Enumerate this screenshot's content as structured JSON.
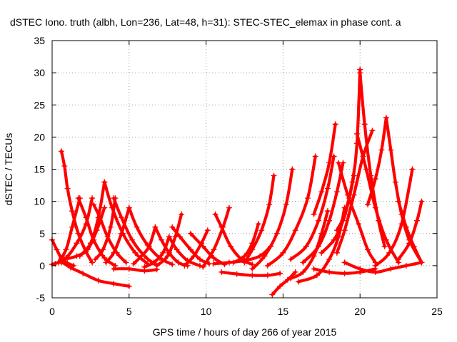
{
  "chart_data": {
    "type": "scatter",
    "title": "dSTEC Iono. truth (albh, Lon=236, Lat=48, h=31): STEC-STEC_elemax in phase cont. a",
    "xlabel": "GPS time / hours of day 266 of year 2015",
    "ylabel": "dSTEC  / TECUs",
    "xlim": [
      0,
      25
    ],
    "ylim": [
      -5,
      35
    ],
    "x_ticks": [
      "0",
      "5",
      "10",
      "15",
      "20",
      "25"
    ],
    "y_ticks": [
      "-5",
      "0",
      "5",
      "10",
      "15",
      "20",
      "25",
      "30",
      "35"
    ],
    "grid": true,
    "marker": "plus",
    "color": "#ff0000",
    "arcs": [
      {
        "x": [
          0.0,
          0.3,
          0.6,
          1.0,
          1.4
        ],
        "y": [
          4.0,
          2.5,
          1.2,
          0.4,
          0.0
        ]
      },
      {
        "x": [
          0.0,
          0.6,
          1.2,
          2.0,
          3.0,
          4.0,
          5.0
        ],
        "y": [
          0.2,
          0.5,
          -0.3,
          -1.2,
          -2.3,
          -2.8,
          -3.2
        ]
      },
      {
        "x": [
          0.2,
          0.9,
          1.6,
          2.2,
          2.6
        ],
        "y": [
          0.3,
          1.2,
          3.5,
          6.5,
          10.5
        ]
      },
      {
        "x": [
          0.6,
          0.8,
          1.0,
          1.3,
          1.7,
          2.2,
          2.6
        ],
        "y": [
          17.8,
          15.5,
          12.0,
          8.5,
          5.0,
          2.2,
          0.5
        ]
      },
      {
        "x": [
          0.4,
          0.9,
          1.3,
          1.8
        ],
        "y": [
          0.5,
          2.5,
          6.0,
          10.5
        ]
      },
      {
        "x": [
          1.7,
          2.2,
          2.7,
          3.4,
          4.1
        ],
        "y": [
          10.5,
          7.5,
          4.0,
          1.2,
          0.0
        ]
      },
      {
        "x": [
          0.8,
          1.6,
          2.3,
          2.9,
          3.4
        ],
        "y": [
          1.0,
          1.5,
          2.5,
          5.5,
          9.0
        ]
      },
      {
        "x": [
          2.7,
          3.1,
          3.6,
          4.2,
          4.8
        ],
        "y": [
          9.5,
          7.5,
          4.5,
          2.0,
          0.5
        ]
      },
      {
        "x": [
          1.8,
          2.5,
          3.0,
          3.4
        ],
        "y": [
          1.5,
          3.5,
          7.5,
          13.0
        ]
      },
      {
        "x": [
          3.4,
          3.9,
          4.6,
          5.4,
          6.2
        ],
        "y": [
          13.0,
          9.0,
          5.0,
          2.0,
          0.3
        ]
      },
      {
        "x": [
          2.8,
          3.3,
          3.8,
          4.1
        ],
        "y": [
          1.0,
          2.5,
          6.0,
          10.5
        ]
      },
      {
        "x": [
          4.0,
          4.5,
          5.2,
          6.0,
          6.8
        ],
        "y": [
          10.5,
          7.5,
          4.0,
          1.5,
          0.0
        ]
      },
      {
        "x": [
          3.5,
          4.0,
          4.5,
          5.0
        ],
        "y": [
          0.5,
          2.0,
          5.0,
          9.0
        ]
      },
      {
        "x": [
          5.0,
          5.5,
          6.2,
          7.0,
          7.8
        ],
        "y": [
          9.0,
          6.0,
          3.2,
          1.2,
          0.2
        ]
      },
      {
        "x": [
          4.0,
          5.0,
          6.0,
          6.8
        ],
        "y": [
          -0.5,
          -0.5,
          -0.8,
          -0.6
        ]
      },
      {
        "x": [
          5.3,
          5.8,
          6.3,
          6.7
        ],
        "y": [
          0.3,
          1.5,
          3.0,
          6.0
        ]
      },
      {
        "x": [
          6.7,
          7.1,
          7.6,
          8.2,
          8.8
        ],
        "y": [
          6.0,
          4.0,
          2.0,
          0.5,
          0.0
        ]
      },
      {
        "x": [
          6.0,
          6.6,
          7.2,
          7.6
        ],
        "y": [
          -0.2,
          0.5,
          2.0,
          4.5
        ]
      },
      {
        "x": [
          7.6,
          8.1,
          8.8,
          9.6
        ],
        "y": [
          4.5,
          2.5,
          0.8,
          0.0
        ]
      },
      {
        "x": [
          6.8,
          7.5,
          8.0,
          8.4
        ],
        "y": [
          0.0,
          1.5,
          4.5,
          8.0
        ]
      },
      {
        "x": [
          7.8,
          8.3,
          9.0,
          9.6,
          10.2
        ],
        "y": [
          6.0,
          4.5,
          2.5,
          1.0,
          0.3
        ]
      },
      {
        "x": [
          8.6,
          9.2,
          9.7,
          10.1
        ],
        "y": [
          0.0,
          1.5,
          3.5,
          5.5
        ]
      },
      {
        "x": [
          9.0,
          9.8,
          10.5,
          11.2
        ],
        "y": [
          5.0,
          3.0,
          1.2,
          0.2
        ]
      },
      {
        "x": [
          9.8,
          10.5,
          11.1,
          11.5
        ],
        "y": [
          -0.2,
          2.5,
          6.0,
          9.0
        ]
      },
      {
        "x": [
          10.6,
          11.0,
          11.6,
          12.3,
          13.0
        ],
        "y": [
          8.0,
          6.0,
          3.0,
          1.0,
          0.2
        ]
      },
      {
        "x": [
          10.5,
          11.5,
          12.5,
          13.5,
          14.2
        ],
        "y": [
          0.3,
          0.5,
          0.8,
          1.5,
          3.0
        ]
      },
      {
        "x": [
          11.0,
          12.0,
          13.0,
          14.0,
          14.8
        ],
        "y": [
          -1.0,
          -1.3,
          -1.5,
          -1.5,
          -1.2
        ]
      },
      {
        "x": [
          11.8,
          12.5,
          13.0,
          13.4
        ],
        "y": [
          0.5,
          1.5,
          3.5,
          6.5
        ]
      },
      {
        "x": [
          12.5,
          13.0,
          13.6,
          14.1,
          14.4
        ],
        "y": [
          0.5,
          2.5,
          5.5,
          9.5,
          14.0
        ]
      },
      {
        "x": [
          14.3,
          14.8,
          15.3,
          15.8
        ],
        "y": [
          -4.5,
          -3.2,
          -2.2,
          -1.0
        ]
      },
      {
        "x": [
          13.0,
          13.8,
          14.6,
          15.2,
          15.6
        ],
        "y": [
          -0.5,
          1.5,
          5.0,
          9.5,
          15.0
        ]
      },
      {
        "x": [
          14.0,
          15.0,
          15.8,
          16.6,
          17.1
        ],
        "y": [
          0.0,
          2.0,
          5.5,
          10.5,
          17.0
        ]
      },
      {
        "x": [
          15.5,
          16.3,
          17.0,
          17.5,
          17.9
        ],
        "y": [
          -2.0,
          -1.0,
          1.5,
          5.0,
          8.5
        ]
      },
      {
        "x": [
          15.5,
          16.5,
          17.3,
          17.9,
          18.3
        ],
        "y": [
          1.0,
          3.0,
          7.0,
          12.0,
          17.0
        ]
      },
      {
        "x": [
          16.0,
          17.2,
          18.0,
          18.6,
          19.0
        ],
        "y": [
          -2.5,
          -1.5,
          1.0,
          4.5,
          9.0
        ]
      },
      {
        "x": [
          16.3,
          17.3,
          18.0,
          18.5,
          18.9
        ],
        "y": [
          0.5,
          3.0,
          7.0,
          11.5,
          16.0
        ]
      },
      {
        "x": [
          17.0,
          17.5,
          18.0,
          18.4
        ],
        "y": [
          8.0,
          11.5,
          16.0,
          22.0
        ]
      },
      {
        "x": [
          17.5,
          18.3,
          18.9,
          19.3,
          19.6
        ],
        "y": [
          2.0,
          4.0,
          7.0,
          10.5,
          14.0
        ]
      },
      {
        "x": [
          18.5,
          19.0,
          19.5,
          19.8,
          20.0
        ],
        "y": [
          5.5,
          8.0,
          13.0,
          19.0,
          30.5
        ]
      },
      {
        "x": [
          20.0,
          20.3,
          20.7,
          21.2,
          21.6
        ],
        "y": [
          30.0,
          22.0,
          14.0,
          7.0,
          3.0
        ]
      },
      {
        "x": [
          18.6,
          19.2,
          19.9,
          20.5,
          21.0
        ],
        "y": [
          16.0,
          11.0,
          6.5,
          2.5,
          0.5
        ]
      },
      {
        "x": [
          19.8,
          20.4,
          21.0,
          21.7,
          22.5
        ],
        "y": [
          20.5,
          15.0,
          9.0,
          4.0,
          0.5
        ]
      },
      {
        "x": [
          20.5,
          21.0,
          21.4,
          21.7
        ],
        "y": [
          9.5,
          13.5,
          18.0,
          23.0
        ]
      },
      {
        "x": [
          21.7,
          22.0,
          22.3,
          22.7,
          23.2,
          24.0
        ],
        "y": [
          23.0,
          18.0,
          13.0,
          8.0,
          4.0,
          0.5
        ]
      },
      {
        "x": [
          21.0,
          21.9,
          22.7,
          23.4
        ],
        "y": [
          0.0,
          2.0,
          6.5,
          15.0
        ]
      },
      {
        "x": [
          22.5,
          23.0,
          23.5,
          24.0
        ],
        "y": [
          10.0,
          6.0,
          3.0,
          0.5
        ]
      },
      {
        "x": [
          22.5,
          23.2,
          23.7,
          24.0
        ],
        "y": [
          1.0,
          3.5,
          7.0,
          10.0
        ]
      },
      {
        "x": [
          19.0,
          20.0,
          21.0,
          22.0,
          23.0,
          24.0
        ],
        "y": [
          0.5,
          -0.5,
          -1.0,
          -0.5,
          0.0,
          0.5
        ]
      },
      {
        "x": [
          17.0,
          18.0,
          19.0,
          20.0,
          21.0
        ],
        "y": [
          -0.5,
          -1.0,
          -1.2,
          -1.0,
          -0.5
        ]
      },
      {
        "x": [
          18.5,
          19.0,
          19.6,
          20.2,
          20.8
        ],
        "y": [
          2.0,
          5.5,
          11.0,
          17.0,
          21.0
        ]
      }
    ]
  }
}
